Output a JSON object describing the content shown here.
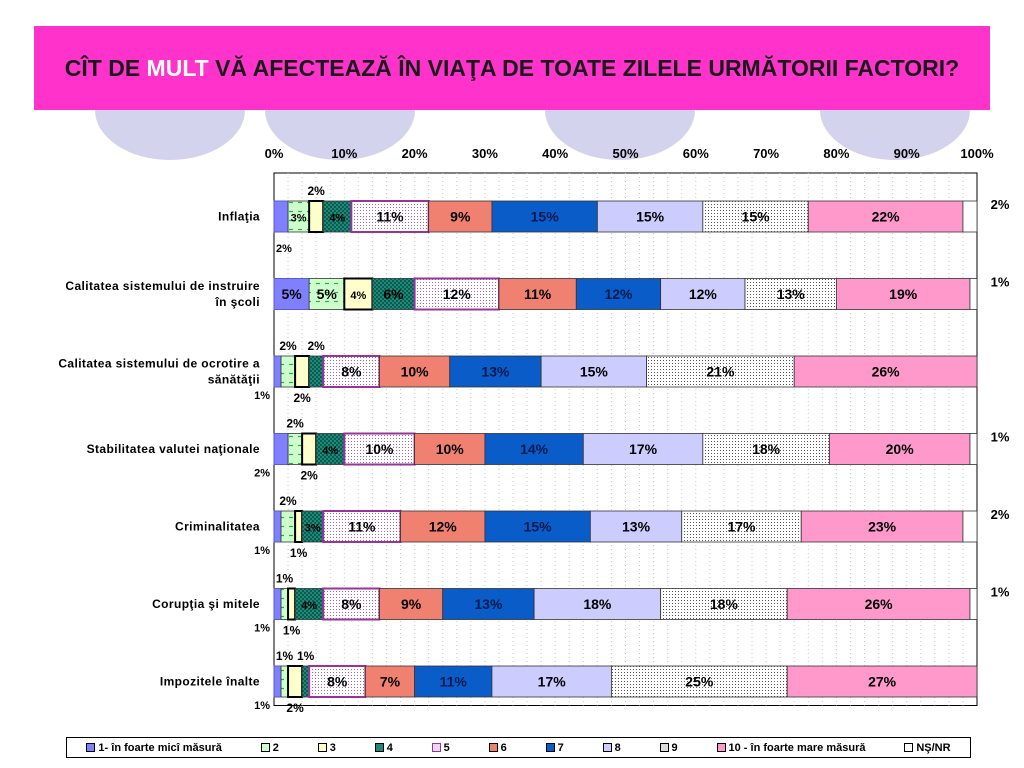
{
  "header": {
    "title_pre": "CÎT DE ",
    "title_highlight": "MULT",
    "title_post": " VĂ AFECTEAZĂ ÎN VIAŢA DE TOATE ZILELE URMĂTORII FACTORI?"
  },
  "colors": {
    "title_bg": "#ff33cc",
    "title_highlight": "#ffffff",
    "decor": "#d3d3ee"
  },
  "chart_data": {
    "type": "bar",
    "orientation": "horizontal",
    "stacked": "percent",
    "xlim": [
      0,
      100
    ],
    "x_ticks": [
      "0%",
      "10%",
      "20%",
      "30%",
      "40%",
      "50%",
      "60%",
      "70%",
      "80%",
      "90%",
      "100%"
    ],
    "grid": true,
    "legend_position": "bottom",
    "categories": [
      "Inflaţia",
      "Calitatea sistemului de instruire în şcoli",
      "Calitatea sistemului de ocrotire a sănătăţii",
      "Stabilitatea valutei naţionale",
      "Criminalitatea",
      "Corupţia şi mitele",
      "Impozitele înalte"
    ],
    "category_lines": [
      [
        "Inflaţia"
      ],
      [
        "Calitatea sistemului de instruire",
        "în şcoli"
      ],
      [
        "Calitatea sistemului de ocrotire a",
        "sănătăţii"
      ],
      [
        "Stabilitatea valutei naţionale"
      ],
      [
        "Criminalitatea"
      ],
      [
        "Corupţia şi mitele"
      ],
      [
        "Impozitele înalte"
      ]
    ],
    "series": [
      {
        "name": "1- în foarte micî măsură",
        "color": "#8080ff",
        "pattern": "solid",
        "values": [
          2,
          5,
          1,
          2,
          1,
          1,
          1
        ]
      },
      {
        "name": "2",
        "color": "#ccffcc",
        "pattern": "dash",
        "values": [
          3,
          5,
          2,
          2,
          2,
          1,
          1
        ]
      },
      {
        "name": "3",
        "color": "#ffffcc",
        "pattern": "solid",
        "values": [
          2,
          4,
          2,
          2,
          1,
          1,
          2
        ]
      },
      {
        "name": "4",
        "color": "#1a8a7a",
        "pattern": "check",
        "values": [
          4,
          6,
          2,
          4,
          3,
          4,
          1
        ]
      },
      {
        "name": "5",
        "color": "#ffffff",
        "pattern": "dots-purple",
        "values": [
          11,
          12,
          8,
          10,
          11,
          8,
          8
        ]
      },
      {
        "name": "6",
        "color": "#f08070",
        "pattern": "solid",
        "values": [
          9,
          11,
          10,
          10,
          12,
          9,
          7
        ]
      },
      {
        "name": "7",
        "color": "#0a5cc8",
        "pattern": "solid",
        "values": [
          15,
          12,
          13,
          14,
          15,
          13,
          11
        ]
      },
      {
        "name": "8",
        "color": "#ccccff",
        "pattern": "solid",
        "values": [
          15,
          12,
          15,
          17,
          13,
          18,
          17
        ]
      },
      {
        "name": "9",
        "color": "#ffffff",
        "pattern": "dots-black",
        "values": [
          15,
          13,
          21,
          18,
          17,
          18,
          25
        ]
      },
      {
        "name": "10 - în foarte mare măsură",
        "color": "#ff99cc",
        "pattern": "solid",
        "values": [
          22,
          19,
          26,
          20,
          23,
          26,
          27
        ]
      },
      {
        "name": "NŞ/NR",
        "color": "#ffffff",
        "pattern": "solid",
        "values": [
          2,
          1,
          0,
          1,
          2,
          1,
          0
        ]
      }
    ]
  }
}
